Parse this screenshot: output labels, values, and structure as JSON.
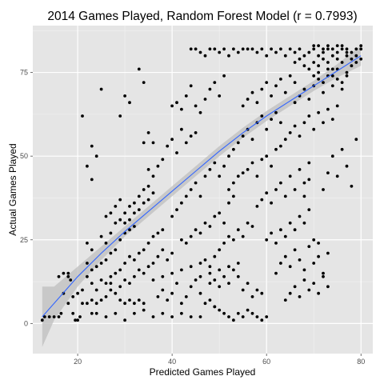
{
  "chart_data": {
    "type": "scatter",
    "title": "2014 Games Played, Random Forest Model (r = 0.7993)",
    "xlabel": "Predicted Games Played",
    "ylabel": "Actual Games Played",
    "xlim": [
      10.5,
      82.5
    ],
    "ylim": [
      -9,
      89
    ],
    "x_ticks": [
      20,
      40,
      60,
      80
    ],
    "y_ticks": [
      0,
      25,
      50,
      75
    ],
    "grid": true,
    "background": "#e5e5e5",
    "gridline_color": "#ffffff",
    "point_color": "#000000",
    "smooth": {
      "method": "loess",
      "line_color": "#3366ff",
      "band_color": "#bdbdbd",
      "points": [
        {
          "x": 12.5,
          "y": 2.0,
          "lo": -7.0,
          "hi": 11.0
        },
        {
          "x": 15,
          "y": 6.0,
          "lo": 1.0,
          "hi": 11.0
        },
        {
          "x": 20,
          "y": 14.0,
          "lo": 11.0,
          "hi": 17.0
        },
        {
          "x": 25,
          "y": 21.0,
          "lo": 19.0,
          "hi": 23.0
        },
        {
          "x": 30,
          "y": 27.5,
          "lo": 26.0,
          "hi": 29.0
        },
        {
          "x": 35,
          "y": 33.5,
          "lo": 32.0,
          "hi": 35.0
        },
        {
          "x": 40,
          "y": 39.5,
          "lo": 38.0,
          "hi": 41.0
        },
        {
          "x": 45,
          "y": 45.5,
          "lo": 44.0,
          "hi": 47.0
        },
        {
          "x": 50,
          "y": 51.5,
          "lo": 50.0,
          "hi": 53.0
        },
        {
          "x": 55,
          "y": 57.0,
          "lo": 55.5,
          "hi": 58.5
        },
        {
          "x": 60,
          "y": 62.0,
          "lo": 60.5,
          "hi": 63.5
        },
        {
          "x": 65,
          "y": 66.5,
          "lo": 65.0,
          "hi": 68.0
        },
        {
          "x": 70,
          "y": 71.0,
          "lo": 69.5,
          "hi": 72.5
        },
        {
          "x": 75,
          "y": 75.5,
          "lo": 73.5,
          "hi": 77.5
        },
        {
          "x": 80,
          "y": 80.0,
          "lo": 77.0,
          "hi": 83.0
        }
      ]
    },
    "points": [
      [
        12.5,
        1
      ],
      [
        13,
        2
      ],
      [
        14,
        2
      ],
      [
        15,
        2
      ],
      [
        16,
        2
      ],
      [
        16.5,
        3
      ],
      [
        17,
        9
      ],
      [
        18,
        14
      ],
      [
        18.5,
        13
      ],
      [
        19,
        3
      ],
      [
        19.5,
        1
      ],
      [
        20,
        1
      ],
      [
        20.5,
        2
      ],
      [
        16,
        14
      ],
      [
        17,
        15
      ],
      [
        18,
        15
      ],
      [
        18,
        6
      ],
      [
        19,
        8
      ],
      [
        20,
        9
      ],
      [
        21,
        10
      ],
      [
        22,
        14
      ],
      [
        23,
        12
      ],
      [
        24,
        10
      ],
      [
        25,
        13
      ],
      [
        26,
        12
      ],
      [
        27,
        14
      ],
      [
        21,
        62
      ],
      [
        22,
        47
      ],
      [
        23,
        43
      ],
      [
        23,
        53
      ],
      [
        24,
        50
      ],
      [
        25,
        70
      ],
      [
        29,
        62
      ],
      [
        30,
        68
      ],
      [
        31,
        66
      ],
      [
        33,
        76
      ],
      [
        34,
        72
      ],
      [
        35,
        57
      ],
      [
        36,
        54
      ],
      [
        22,
        18
      ],
      [
        22,
        24
      ],
      [
        23,
        22
      ],
      [
        23,
        16
      ],
      [
        24,
        17
      ],
      [
        25,
        18
      ],
      [
        26,
        19
      ],
      [
        27,
        21
      ],
      [
        28,
        22
      ],
      [
        29,
        25
      ],
      [
        30,
        27
      ],
      [
        31,
        28
      ],
      [
        32,
        29
      ],
      [
        21,
        6
      ],
      [
        22,
        6
      ],
      [
        23,
        7
      ],
      [
        24,
        6
      ],
      [
        25,
        7
      ],
      [
        26,
        8
      ],
      [
        27,
        10
      ],
      [
        28,
        9
      ],
      [
        29,
        7
      ],
      [
        30,
        6
      ],
      [
        31,
        7
      ],
      [
        32,
        6
      ],
      [
        33,
        7
      ],
      [
        34,
        6
      ],
      [
        23,
        3
      ],
      [
        24,
        3
      ],
      [
        26,
        2
      ],
      [
        28,
        3
      ],
      [
        30,
        1
      ],
      [
        32,
        3
      ],
      [
        34,
        4
      ],
      [
        36,
        2
      ],
      [
        38,
        3
      ],
      [
        40,
        2
      ],
      [
        42,
        3
      ],
      [
        44,
        2
      ],
      [
        46,
        2
      ],
      [
        25,
        26
      ],
      [
        26,
        24
      ],
      [
        27,
        27
      ],
      [
        28,
        30
      ],
      [
        29,
        31
      ],
      [
        30,
        33
      ],
      [
        31,
        35
      ],
      [
        32,
        36
      ],
      [
        33,
        38
      ],
      [
        34,
        40
      ],
      [
        35,
        41
      ],
      [
        36,
        39
      ],
      [
        27,
        12
      ],
      [
        28,
        15
      ],
      [
        29,
        16
      ],
      [
        30,
        18
      ],
      [
        31,
        20
      ],
      [
        32,
        19
      ],
      [
        33,
        21
      ],
      [
        34,
        22
      ],
      [
        35,
        24
      ],
      [
        36,
        26
      ],
      [
        37,
        27
      ],
      [
        38,
        28
      ],
      [
        29,
        11
      ],
      [
        30,
        13
      ],
      [
        31,
        12
      ],
      [
        32,
        14
      ],
      [
        33,
        16
      ],
      [
        34,
        15
      ],
      [
        35,
        17
      ],
      [
        36,
        18
      ],
      [
        37,
        20
      ],
      [
        38,
        22
      ],
      [
        39,
        19
      ],
      [
        40,
        21
      ],
      [
        34,
        54
      ],
      [
        35,
        46
      ],
      [
        36,
        44
      ],
      [
        37,
        47
      ],
      [
        38,
        49
      ],
      [
        39,
        53
      ],
      [
        40,
        55
      ],
      [
        41,
        51
      ],
      [
        42,
        58
      ],
      [
        43,
        54
      ],
      [
        44,
        56
      ],
      [
        45,
        57
      ],
      [
        37,
        8
      ],
      [
        38,
        10
      ],
      [
        39,
        7
      ],
      [
        40,
        9
      ],
      [
        41,
        12
      ],
      [
        42,
        6
      ],
      [
        43,
        8
      ],
      [
        44,
        11
      ],
      [
        45,
        13
      ],
      [
        46,
        9
      ],
      [
        47,
        6
      ],
      [
        48,
        7
      ],
      [
        49,
        5
      ],
      [
        40,
        32
      ],
      [
        41,
        34
      ],
      [
        42,
        36
      ],
      [
        43,
        38
      ],
      [
        44,
        40
      ],
      [
        45,
        42
      ],
      [
        46,
        38
      ],
      [
        47,
        44
      ],
      [
        48,
        46
      ],
      [
        49,
        48
      ],
      [
        50,
        44
      ],
      [
        51,
        47
      ],
      [
        40,
        65
      ],
      [
        41,
        66
      ],
      [
        42,
        64
      ],
      [
        43,
        68
      ],
      [
        44,
        71
      ],
      [
        45,
        65
      ],
      [
        46,
        63
      ],
      [
        47,
        67
      ],
      [
        48,
        70
      ],
      [
        49,
        72
      ],
      [
        50,
        68
      ],
      [
        51,
        74
      ],
      [
        44,
        82
      ],
      [
        45,
        82
      ],
      [
        46,
        81
      ],
      [
        47,
        80
      ],
      [
        48,
        82
      ],
      [
        49,
        82
      ],
      [
        50,
        81
      ],
      [
        51,
        82
      ],
      [
        52,
        80
      ],
      [
        53,
        82
      ],
      [
        54,
        81
      ],
      [
        55,
        82
      ],
      [
        42,
        25
      ],
      [
        43,
        24
      ],
      [
        44,
        26
      ],
      [
        45,
        28
      ],
      [
        46,
        27
      ],
      [
        47,
        30
      ],
      [
        48,
        29
      ],
      [
        49,
        32
      ],
      [
        50,
        33
      ],
      [
        51,
        30
      ],
      [
        52,
        36
      ],
      [
        53,
        38
      ],
      [
        46,
        18
      ],
      [
        47,
        19
      ],
      [
        48,
        17
      ],
      [
        49,
        20
      ],
      [
        50,
        22
      ],
      [
        51,
        24
      ],
      [
        52,
        26
      ],
      [
        53,
        25
      ],
      [
        54,
        28
      ],
      [
        55,
        26
      ],
      [
        56,
        30
      ],
      [
        57,
        29
      ],
      [
        48,
        12
      ],
      [
        49,
        13
      ],
      [
        50,
        11
      ],
      [
        51,
        14
      ],
      [
        52,
        12
      ],
      [
        53,
        16
      ],
      [
        54,
        14
      ],
      [
        55,
        10
      ],
      [
        56,
        12
      ],
      [
        57,
        8
      ],
      [
        58,
        10
      ],
      [
        59,
        9
      ],
      [
        49,
        5
      ],
      [
        50,
        4
      ],
      [
        51,
        3
      ],
      [
        52,
        2
      ],
      [
        53,
        1
      ],
      [
        54,
        3
      ],
      [
        55,
        2
      ],
      [
        56,
        4
      ],
      [
        57,
        3
      ],
      [
        58,
        2
      ],
      [
        59,
        1
      ],
      [
        60,
        2
      ],
      [
        52,
        50
      ],
      [
        53,
        52
      ],
      [
        54,
        54
      ],
      [
        55,
        56
      ],
      [
        56,
        58
      ],
      [
        57,
        55
      ],
      [
        58,
        60
      ],
      [
        59,
        62
      ],
      [
        60,
        58
      ],
      [
        61,
        61
      ],
      [
        62,
        63
      ],
      [
        63,
        60
      ],
      [
        52,
        40
      ],
      [
        53,
        42
      ],
      [
        54,
        44
      ],
      [
        55,
        45
      ],
      [
        56,
        46
      ],
      [
        57,
        48
      ],
      [
        58,
        44
      ],
      [
        59,
        49
      ],
      [
        60,
        50
      ],
      [
        61,
        47
      ],
      [
        62,
        52
      ],
      [
        63,
        53
      ],
      [
        55,
        65
      ],
      [
        56,
        67
      ],
      [
        57,
        69
      ],
      [
        58,
        66
      ],
      [
        59,
        70
      ],
      [
        60,
        72
      ],
      [
        61,
        68
      ],
      [
        62,
        71
      ],
      [
        63,
        73
      ],
      [
        64,
        69
      ],
      [
        65,
        74
      ],
      [
        66,
        72
      ],
      [
        56,
        82
      ],
      [
        57,
        82
      ],
      [
        58,
        81
      ],
      [
        59,
        82
      ],
      [
        60,
        80
      ],
      [
        61,
        82
      ],
      [
        62,
        81
      ],
      [
        63,
        82
      ],
      [
        64,
        80
      ],
      [
        65,
        82
      ],
      [
        66,
        81
      ],
      [
        67,
        82
      ],
      [
        58,
        35
      ],
      [
        59,
        37
      ],
      [
        60,
        39
      ],
      [
        61,
        36
      ],
      [
        62,
        40
      ],
      [
        63,
        42
      ],
      [
        64,
        38
      ],
      [
        65,
        44
      ],
      [
        66,
        40
      ],
      [
        67,
        46
      ],
      [
        68,
        42
      ],
      [
        69,
        48
      ],
      [
        60,
        25
      ],
      [
        61,
        27
      ],
      [
        62,
        24
      ],
      [
        63,
        28
      ],
      [
        64,
        26
      ],
      [
        65,
        30
      ],
      [
        66,
        28
      ],
      [
        67,
        32
      ],
      [
        68,
        30
      ],
      [
        69,
        34
      ],
      [
        70,
        25
      ],
      [
        71,
        24
      ],
      [
        62,
        15
      ],
      [
        63,
        18
      ],
      [
        64,
        20
      ],
      [
        65,
        17
      ],
      [
        66,
        22
      ],
      [
        67,
        19
      ],
      [
        68,
        16
      ],
      [
        69,
        23
      ],
      [
        70,
        18
      ],
      [
        71,
        20
      ],
      [
        72,
        15
      ],
      [
        73,
        21
      ],
      [
        64,
        7
      ],
      [
        65,
        9
      ],
      [
        66,
        11
      ],
      [
        67,
        8
      ],
      [
        68,
        13
      ],
      [
        69,
        10
      ],
      [
        70,
        12
      ],
      [
        71,
        9
      ],
      [
        72,
        14
      ],
      [
        73,
        11
      ],
      [
        64,
        55
      ],
      [
        65,
        57
      ],
      [
        66,
        59
      ],
      [
        67,
        56
      ],
      [
        68,
        60
      ],
      [
        69,
        62
      ],
      [
        70,
        58
      ],
      [
        71,
        63
      ],
      [
        72,
        60
      ],
      [
        73,
        64
      ],
      [
        74,
        61
      ],
      [
        75,
        65
      ],
      [
        66,
        66
      ],
      [
        67,
        68
      ],
      [
        68,
        70
      ],
      [
        69,
        67
      ],
      [
        70,
        71
      ],
      [
        71,
        73
      ],
      [
        72,
        69
      ],
      [
        73,
        74
      ],
      [
        74,
        71
      ],
      [
        75,
        76
      ],
      [
        76,
        72
      ],
      [
        77,
        75
      ],
      [
        66,
        78
      ],
      [
        67,
        79
      ],
      [
        68,
        80
      ],
      [
        69,
        81
      ],
      [
        70,
        82
      ],
      [
        71,
        80
      ],
      [
        72,
        81
      ],
      [
        73,
        82
      ],
      [
        74,
        80
      ],
      [
        75,
        81
      ],
      [
        76,
        82
      ],
      [
        77,
        81
      ],
      [
        68,
        77
      ],
      [
        69,
        76
      ],
      [
        70,
        78
      ],
      [
        71,
        77
      ],
      [
        72,
        79
      ],
      [
        73,
        78
      ],
      [
        74,
        76
      ],
      [
        75,
        79
      ],
      [
        76,
        78
      ],
      [
        77,
        80
      ],
      [
        78,
        79
      ],
      [
        79,
        82
      ],
      [
        70,
        83
      ],
      [
        71,
        83
      ],
      [
        72,
        82
      ],
      [
        73,
        83
      ],
      [
        74,
        82
      ],
      [
        75,
        83
      ],
      [
        76,
        83
      ],
      [
        77,
        82
      ],
      [
        78,
        81
      ],
      [
        79,
        80
      ],
      [
        80,
        83
      ],
      [
        80,
        82
      ],
      [
        70,
        74
      ],
      [
        71,
        75
      ],
      [
        72,
        72
      ],
      [
        73,
        76
      ],
      [
        74,
        74
      ],
      [
        75,
        73
      ],
      [
        76,
        70
      ],
      [
        77,
        74
      ],
      [
        78,
        77
      ],
      [
        79,
        78
      ],
      [
        80,
        79
      ],
      [
        74,
        50
      ],
      [
        75,
        44
      ],
      [
        76,
        52
      ],
      [
        77,
        47
      ],
      [
        78,
        41
      ],
      [
        79,
        55
      ],
      [
        72,
        40
      ],
      [
        73,
        45
      ],
      [
        68,
        38
      ],
      [
        69,
        43
      ],
      [
        36,
        13
      ],
      [
        38,
        14
      ],
      [
        40,
        15
      ],
      [
        42,
        16
      ],
      [
        44,
        17
      ],
      [
        46,
        14
      ],
      [
        48,
        15
      ],
      [
        50,
        16
      ],
      [
        52,
        17
      ],
      [
        54,
        18
      ],
      [
        26,
        32
      ],
      [
        27,
        33
      ],
      [
        28,
        35
      ],
      [
        29,
        37
      ],
      [
        30,
        30
      ],
      [
        31,
        31
      ],
      [
        32,
        33
      ],
      [
        33,
        34
      ],
      [
        34,
        36
      ],
      [
        35,
        37
      ]
    ]
  }
}
